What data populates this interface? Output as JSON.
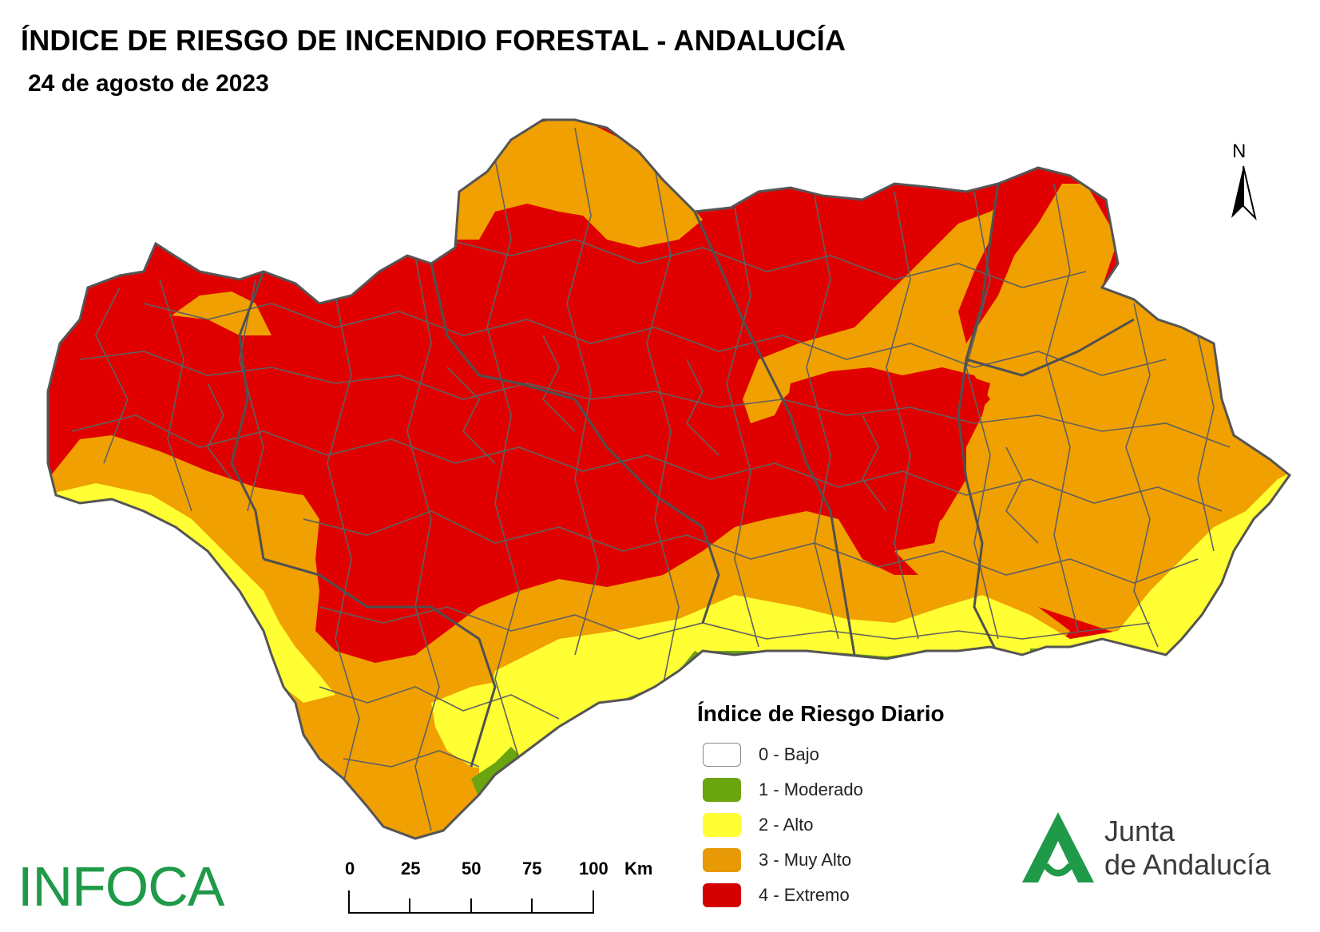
{
  "header": {
    "title": "ÍNDICE DE RIESGO DE INCENDIO FORESTAL - ANDALUCÍA",
    "date": "24 de agosto de 2023"
  },
  "north_arrow": {
    "label": "N"
  },
  "legend": {
    "title": "Índice de Riesgo Diario",
    "items": [
      {
        "label": "0 - Bajo",
        "color": "#ffffff"
      },
      {
        "label": "1 - Moderado",
        "color": "#6aa40e"
      },
      {
        "label": "2 - Alto",
        "color": "#ffff33"
      },
      {
        "label": "3 - Muy Alto",
        "color": "#e89a06"
      },
      {
        "label": "4 - Extremo",
        "color": "#d40000"
      }
    ]
  },
  "scale_bar": {
    "ticks": [
      "0",
      "25",
      "50",
      "75",
      "100"
    ],
    "unit": "Km"
  },
  "logos": {
    "infoca": "INFOCA",
    "junta_line1": "Junta",
    "junta_line2": "de Andalucía",
    "junta_color": "#1f9a48"
  },
  "map_colors": {
    "extremo": "#e00000",
    "muy_alto": "#f0a000",
    "alto": "#ffff33",
    "moderado": "#6aa40e",
    "border": "#555555"
  }
}
